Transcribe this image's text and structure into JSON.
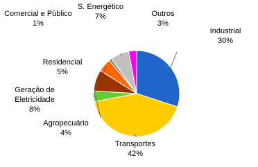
{
  "chart_data": {
    "type": "pie",
    "categories": [
      "Industrial",
      "Transportes",
      "Agropecuário",
      "Geração de Eletricidade",
      "Residencial",
      "Comercial e Público",
      "S. Energético",
      "Outros"
    ],
    "values": [
      30,
      42,
      4,
      8,
      5,
      1,
      7,
      3
    ],
    "value_labels": [
      "30%",
      "42%",
      "4%",
      "8%",
      "5%",
      "1%",
      "7%",
      "3%"
    ],
    "colors": [
      "#1f66c8",
      "#ffcc00",
      "#66cc33",
      "#993300",
      "#ff6600",
      "#7f7f7f",
      "#c0c0c0",
      "#ff00ff"
    ]
  }
}
